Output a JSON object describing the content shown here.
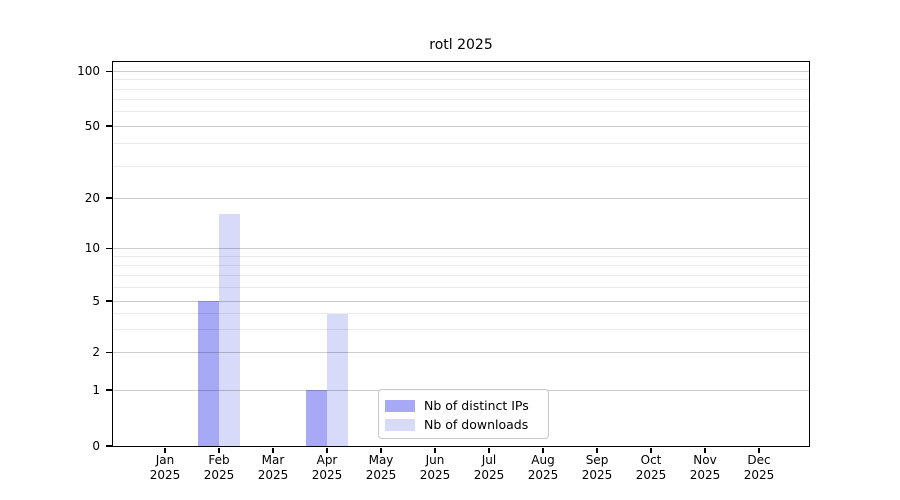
{
  "title": "rotl 2025",
  "y_axis": {
    "tick_labels": [
      "100",
      "50",
      "20",
      "10",
      "5",
      "2",
      "1",
      "0"
    ]
  },
  "x_axis": {
    "months": [
      "Jan",
      "Feb",
      "Mar",
      "Apr",
      "May",
      "Jun",
      "Jul",
      "Aug",
      "Sep",
      "Oct",
      "Nov",
      "Dec"
    ],
    "year": "2025"
  },
  "legend": {
    "items": [
      {
        "label": "Nb of distinct IPs",
        "color": "#a7a9f7"
      },
      {
        "label": "Nb of downloads",
        "color": "#d8dafa"
      }
    ]
  },
  "style": {
    "bar_ips_color": "#a7a9f7",
    "bar_downloads_color": "#d8dafa",
    "grid_major_color": "#cccccc",
    "grid_minor_color": "#ebebeb",
    "axis_color": "#000000",
    "background": "#ffffff"
  },
  "chart_data": {
    "type": "bar",
    "title": "rotl 2025",
    "categories": [
      "Jan 2025",
      "Feb 2025",
      "Mar 2025",
      "Apr 2025",
      "May 2025",
      "Jun 2025",
      "Jul 2025",
      "Aug 2025",
      "Sep 2025",
      "Oct 2025",
      "Nov 2025",
      "Dec 2025"
    ],
    "series": [
      {
        "name": "Nb of distinct IPs",
        "color": "#a7a9f7",
        "values": [
          0,
          5,
          0,
          1,
          0,
          0,
          0,
          0,
          0,
          0,
          0,
          0
        ]
      },
      {
        "name": "Nb of downloads",
        "color": "#d8dafa",
        "values": [
          0,
          16,
          0,
          4,
          0,
          0,
          0,
          0,
          0,
          0,
          0,
          0
        ]
      }
    ],
    "xlabel": "",
    "ylabel": "",
    "y_scale": "log10(value+1)",
    "y_ticks": [
      0,
      1,
      2,
      5,
      10,
      20,
      50,
      100
    ],
    "y_minor_gridlines": [
      3,
      4,
      6,
      7,
      8,
      9,
      30,
      40,
      60,
      70,
      80,
      90
    ],
    "ylim": [
      0,
      114
    ],
    "grid": "horizontal",
    "legend_position": "inside-bottom-center"
  }
}
